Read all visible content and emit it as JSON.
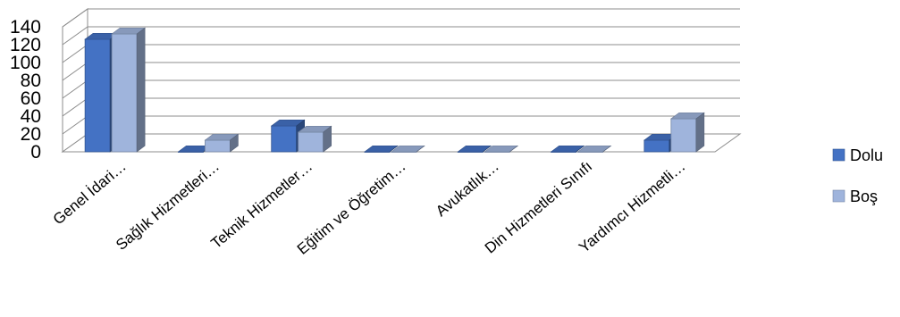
{
  "chart_data": {
    "type": "bar",
    "variant": "3d-clustered-column",
    "title": "",
    "xlabel": "",
    "ylabel": "",
    "ylim": [
      0,
      140
    ],
    "yticks": [
      "0",
      "20",
      "40",
      "60",
      "80",
      "100",
      "120",
      "140"
    ],
    "grid": true,
    "legend_position": "right",
    "categories": [
      "Genel İdari…",
      "Sağlık Hizmetleri…",
      "Teknik Hizmetler…",
      "Eğitim ve Öğretim…",
      "Avukatlık…",
      "Din Hizmetleri Sınıfı",
      "Yardımcı Hizmetli…"
    ],
    "series": [
      {
        "name": "Dolu",
        "color": "#4472c4",
        "values": [
          126,
          0,
          29,
          0,
          0,
          0,
          13
        ]
      },
      {
        "name": "Boş",
        "color": "#9fb4dc",
        "values": [
          132,
          13,
          22,
          0,
          0,
          0,
          37
        ]
      }
    ]
  }
}
